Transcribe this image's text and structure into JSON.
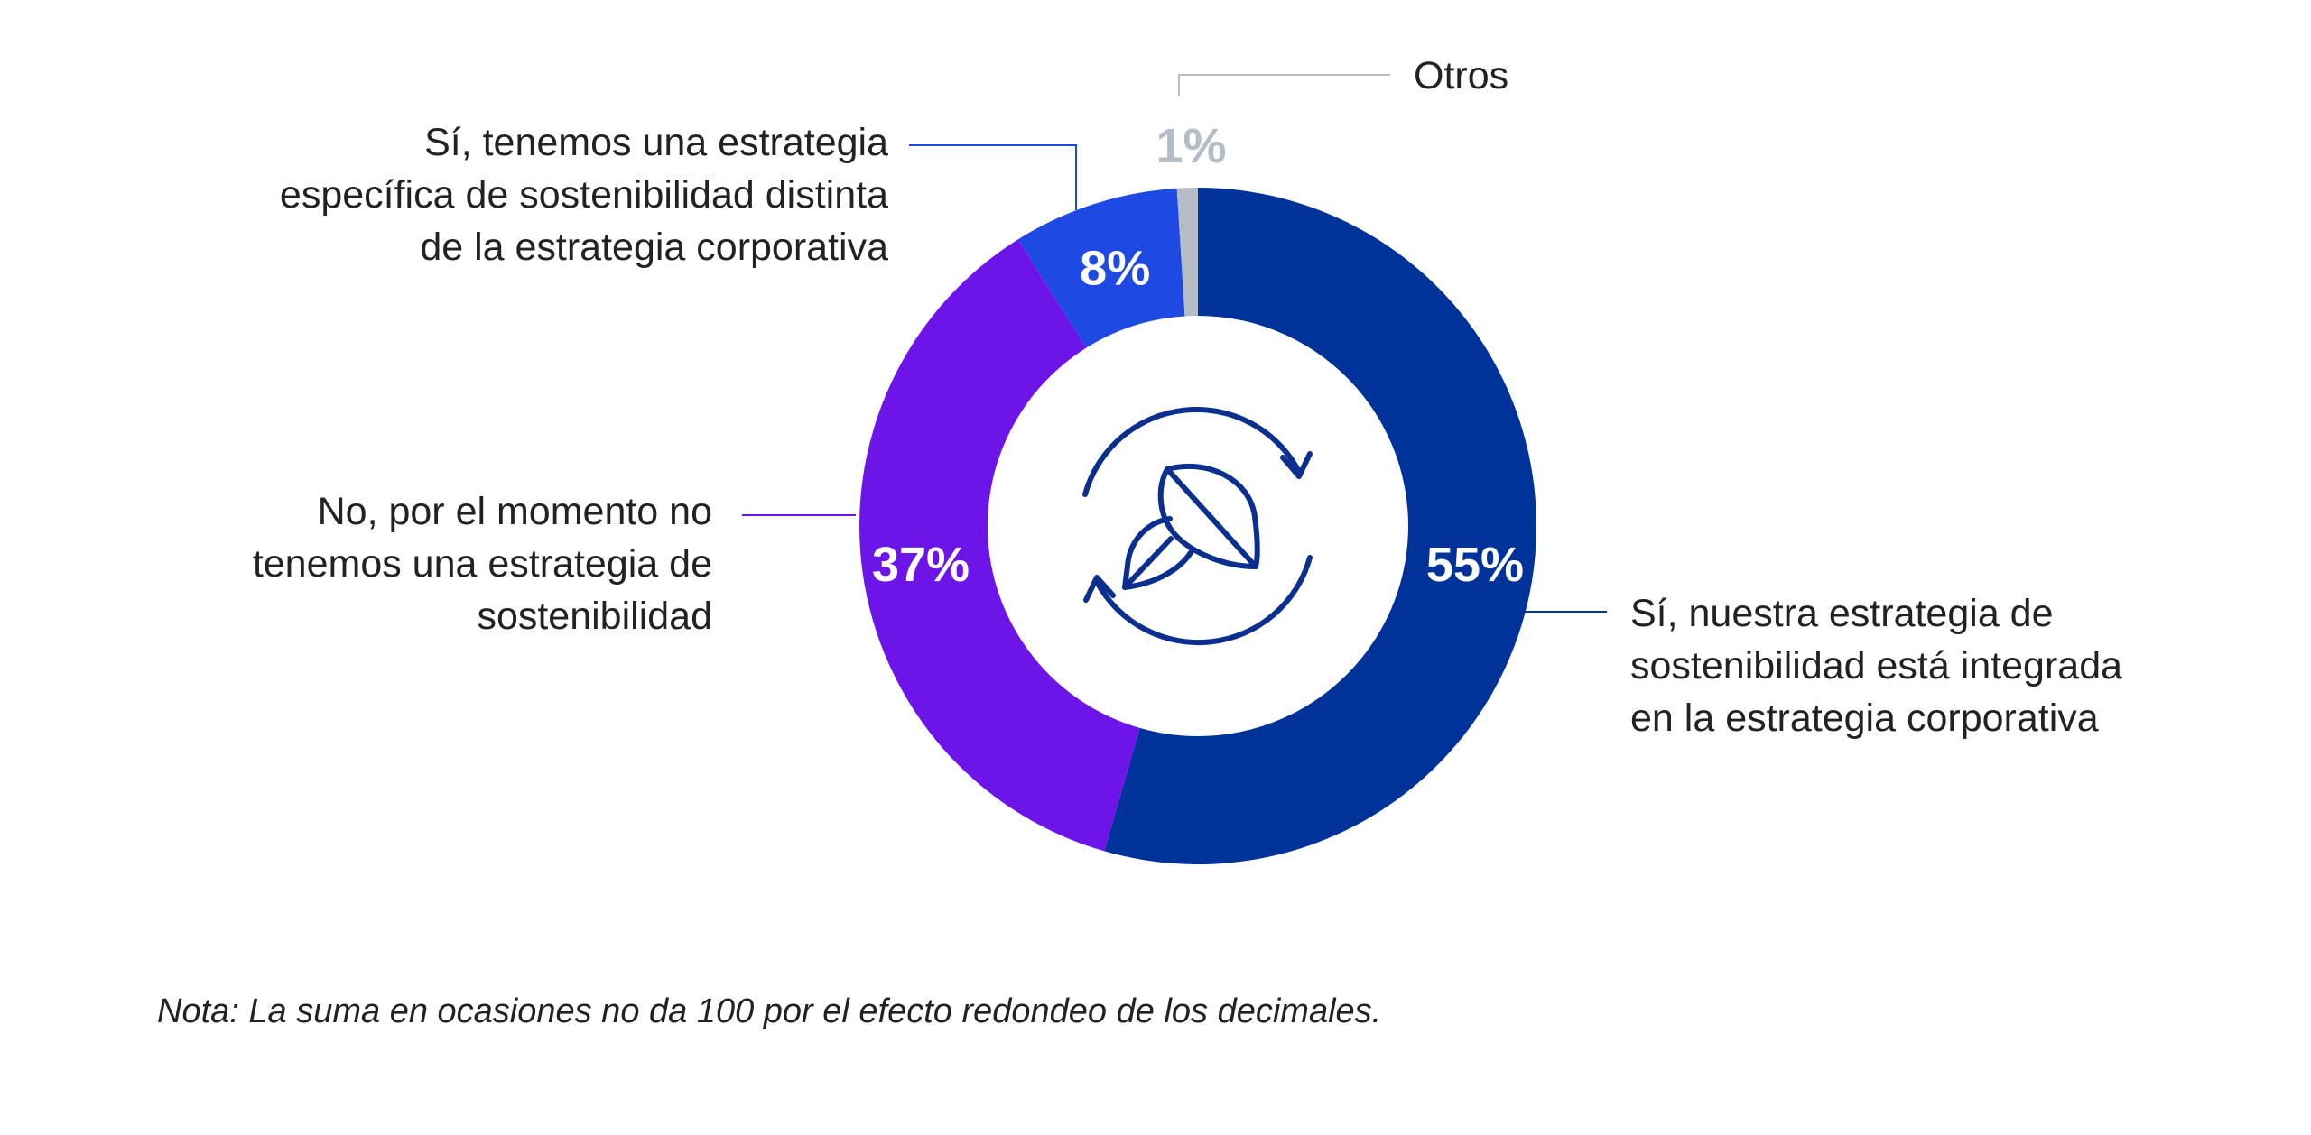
{
  "chart_data": {
    "type": "pie",
    "donut": true,
    "slices": [
      {
        "label_lines": [
          "Sí, nuestra estrategia de",
          "sostenibilidad está integrada",
          "en la estrategia corporativa"
        ],
        "value": 55,
        "display": "55%",
        "color": "#003399",
        "label_color": "#ffffff"
      },
      {
        "label_lines": [
          "No, por el momento no",
          "tenemos una estrategia de",
          "sostenibilidad"
        ],
        "value": 37,
        "display": "37%",
        "color": "#6d15e8",
        "label_color": "#ffffff"
      },
      {
        "label_lines": [
          "Sí, tenemos una estrategia",
          "específica de sostenibilidad distinta",
          "de la estrategia corporativa"
        ],
        "value": 8,
        "display": "8%",
        "color": "#1e49e2",
        "label_color": "#ffffff"
      },
      {
        "label_lines": [
          "Otros"
        ],
        "value": 1,
        "display": "1%",
        "color": "#b4bcc6",
        "label_color": "#b4bcc6"
      }
    ],
    "center_icon": "leaf-cycle-icon",
    "note": "Nota: La suma en ocasiones no da 100 por el efecto redondeo de los decimales."
  }
}
